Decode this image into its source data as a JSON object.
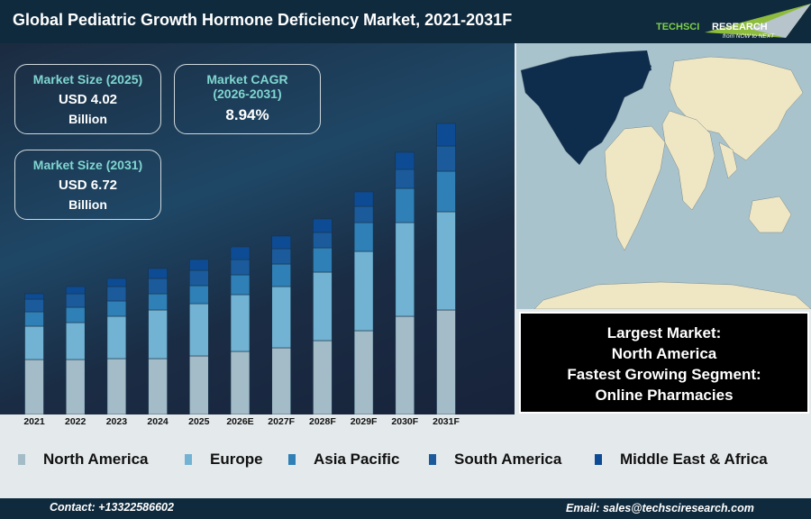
{
  "header": {
    "title": "Global Pediatric Growth Hormone Deficiency Market, 2021-2031F",
    "logo_text": "TechSci Research",
    "logo_tagline": "from NOW to NEXT"
  },
  "kpis": {
    "size2025": {
      "label": "Market Size (2025)",
      "value": "USD 4.02",
      "unit": "Billion"
    },
    "cagr": {
      "label1": "Market CAGR",
      "label2": "(2026-2031)",
      "value": "8.94%"
    },
    "size2031": {
      "label": "Market Size (2031)",
      "value": "USD 6.72",
      "unit": "Billion"
    }
  },
  "info": {
    "line1": "Largest Market:",
    "line2": "North America",
    "line3": "Fastest Growing Segment:",
    "line4": "Online Pharmacies"
  },
  "footer": {
    "contact": "Contact: +13322586602",
    "email": "Email: sales@techsciresearch.com"
  },
  "colors": {
    "North America": "#a3bcc8",
    "Europe": "#72b3d3",
    "Asia Pacific": "#2f80b6",
    "South America": "#1b5b9c",
    "Middle East & Africa": "#0d4c94",
    "highlight_region": "#0e2c4c"
  },
  "chart_data": {
    "type": "bar",
    "stacked": true,
    "grid": false,
    "legend": "bottom",
    "ylim": [
      0,
      340
    ],
    "categories": [
      "2021",
      "2022",
      "2023",
      "2024",
      "2025",
      "2026E",
      "2027F",
      "2028F",
      "2029F",
      "2030F",
      "2031F"
    ],
    "series": [
      {
        "name": "North America",
        "values": [
          61,
          61,
          62,
          62,
          65,
          70,
          74,
          82,
          93,
          109,
          116
        ]
      },
      {
        "name": "Europe",
        "values": [
          37,
          41,
          47,
          54,
          58,
          63,
          68,
          76,
          88,
          104,
          109
        ]
      },
      {
        "name": "Asia Pacific",
        "values": [
          16,
          17,
          17,
          18,
          20,
          22,
          25,
          27,
          32,
          38,
          45
        ]
      },
      {
        "name": "South America",
        "values": [
          14,
          15,
          16,
          17,
          17,
          17,
          17,
          17,
          18,
          21,
          28
        ]
      },
      {
        "name": "Middle East & Africa",
        "values": [
          6,
          8,
          9,
          11,
          12,
          14,
          14,
          15,
          16,
          19,
          25
        ]
      }
    ]
  }
}
